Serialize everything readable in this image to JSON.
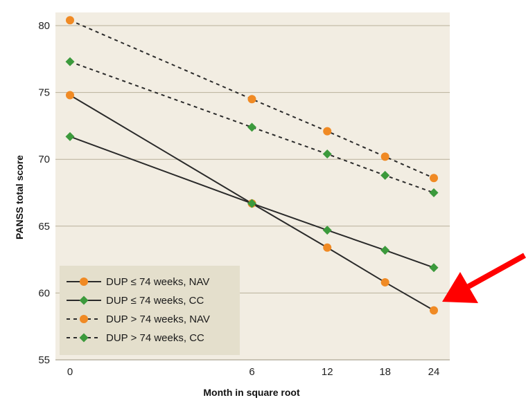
{
  "chart_data": {
    "type": "line",
    "title": "",
    "xlabel": "Month in square root",
    "ylabel": "PANSS total score",
    "x_scale": "sqrt",
    "x_ticks": [
      0,
      6,
      12,
      18,
      24
    ],
    "x_tick_labels": [
      "0",
      "6",
      "12",
      "18",
      "24"
    ],
    "y_ticks": [
      55,
      60,
      65,
      70,
      75,
      80
    ],
    "y_tick_labels": [
      "55",
      "60",
      "65",
      "70",
      "75",
      "80"
    ],
    "xlim": [
      0,
      24
    ],
    "ylim": [
      55,
      81
    ],
    "grid": "horizontal",
    "legend_position": "bottom-left",
    "colors": {
      "plot_background": "#f2ede2",
      "legend_background": "#e4dfcc",
      "gridline": "#b8b09a",
      "line": "#2a2a2a",
      "orange_marker": "#f08a24",
      "green_marker": "#3c9a3c",
      "annotation_arrow": "#ff0000"
    },
    "series": [
      {
        "name": "DUP ≤ 74 weeks, NAV",
        "line_style": "solid",
        "marker": "circle",
        "marker_color": "#f08a24",
        "x": [
          0,
          6,
          12,
          18,
          24
        ],
        "values": [
          74.8,
          66.7,
          63.4,
          60.8,
          58.7
        ]
      },
      {
        "name": "DUP ≤ 74 weeks, CC",
        "line_style": "solid",
        "marker": "diamond",
        "marker_color": "#3c9a3c",
        "x": [
          0,
          6,
          12,
          18,
          24
        ],
        "values": [
          71.7,
          66.7,
          64.7,
          63.2,
          61.9
        ]
      },
      {
        "name": "DUP > 74 weeks, NAV",
        "line_style": "dotted",
        "marker": "circle",
        "marker_color": "#f08a24",
        "x": [
          0,
          6,
          12,
          18,
          24
        ],
        "values": [
          80.4,
          74.5,
          72.1,
          70.2,
          68.6
        ]
      },
      {
        "name": "DUP > 74 weeks, CC",
        "line_style": "dotted",
        "marker": "diamond",
        "marker_color": "#3c9a3c",
        "x": [
          0,
          6,
          12,
          18,
          24
        ],
        "values": [
          77.3,
          72.4,
          70.4,
          68.8,
          67.5
        ]
      }
    ],
    "annotations": [
      {
        "type": "arrow",
        "points_to": {
          "x": 24,
          "y": 58.7
        },
        "color": "#ff0000"
      }
    ]
  }
}
